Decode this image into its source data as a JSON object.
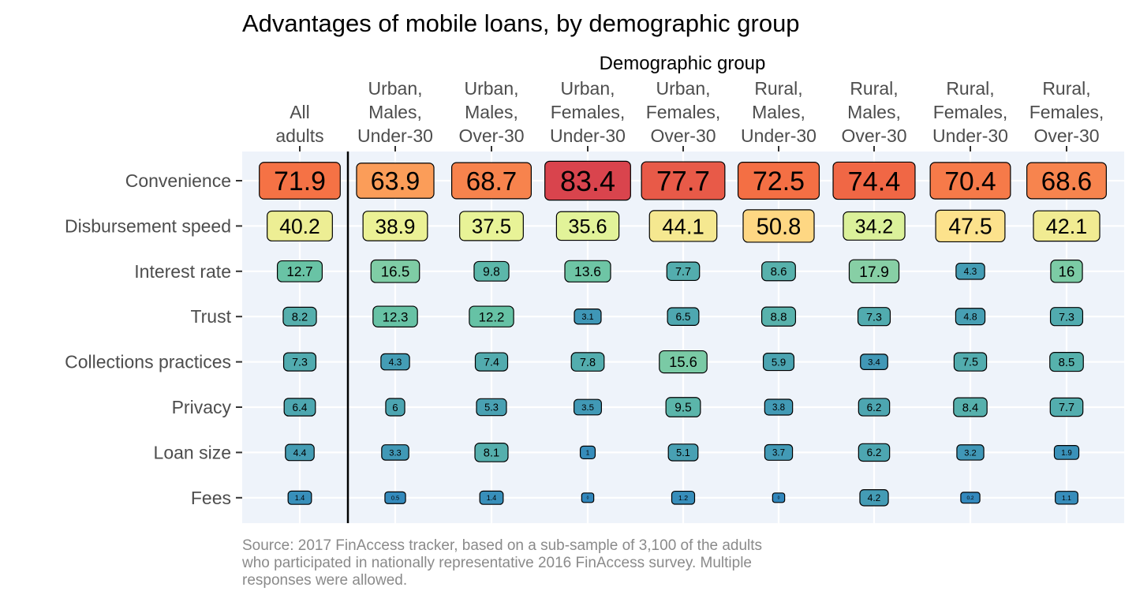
{
  "chart_data": {
    "type": "heatmap",
    "title": "Advantages of mobile loans, by demographic group",
    "xlabel": "Demographic group",
    "x_axis_position": "top",
    "columns": [
      [
        "All",
        "adults"
      ],
      [
        "Urban,",
        "Males,",
        "Under-30"
      ],
      [
        "Urban,",
        "Males,",
        "Over-30"
      ],
      [
        "Urban,",
        "Females,",
        "Under-30"
      ],
      [
        "Urban,",
        "Females,",
        "Over-30"
      ],
      [
        "Rural,",
        "Males,",
        "Under-30"
      ],
      [
        "Rural,",
        "Males,",
        "Over-30"
      ],
      [
        "Rural,",
        "Females,",
        "Under-30"
      ],
      [
        "Rural,",
        "Females,",
        "Over-30"
      ]
    ],
    "rows": [
      "Convenience",
      "Disbursement speed",
      "Interest rate",
      "Trust",
      "Collections practices",
      "Privacy",
      "Loan size",
      "Fees"
    ],
    "values": [
      [
        71.9,
        63.9,
        68.7,
        83.4,
        77.7,
        72.5,
        74.4,
        70.4,
        68.6
      ],
      [
        40.2,
        38.9,
        37.5,
        35.6,
        44.1,
        50.8,
        34.2,
        47.5,
        42.1
      ],
      [
        12.7,
        16.5,
        9.8,
        13.6,
        7.7,
        8.6,
        17.9,
        4.3,
        16
      ],
      [
        8.2,
        12.3,
        12.2,
        3.1,
        6.5,
        8.8,
        7.3,
        4.8,
        7.3
      ],
      [
        7.3,
        4.3,
        7.4,
        7.8,
        15.6,
        5.9,
        3.4,
        7.5,
        8.5
      ],
      [
        6.4,
        6,
        5.3,
        3.5,
        9.5,
        3.8,
        6.2,
        8.4,
        7.7
      ],
      [
        4.4,
        3.3,
        8.1,
        1,
        5.1,
        3.7,
        6.2,
        3.2,
        1.9
      ],
      [
        1.4,
        0.5,
        1.4,
        0,
        1.2,
        0,
        4.2,
        0.2,
        1.1
      ]
    ],
    "color_scale": "Spectral (reversed): blue = low, red = high",
    "panel_background": "#eef3fa",
    "grid": true,
    "separator_after_first_column": true,
    "caption": [
      "Source: 2017 FinAccess tracker, based on a sub-sample of 3,100 of the adults",
      "who participated in nationally representative 2016 FinAccess survey. Multiple",
      "responses were allowed."
    ]
  }
}
